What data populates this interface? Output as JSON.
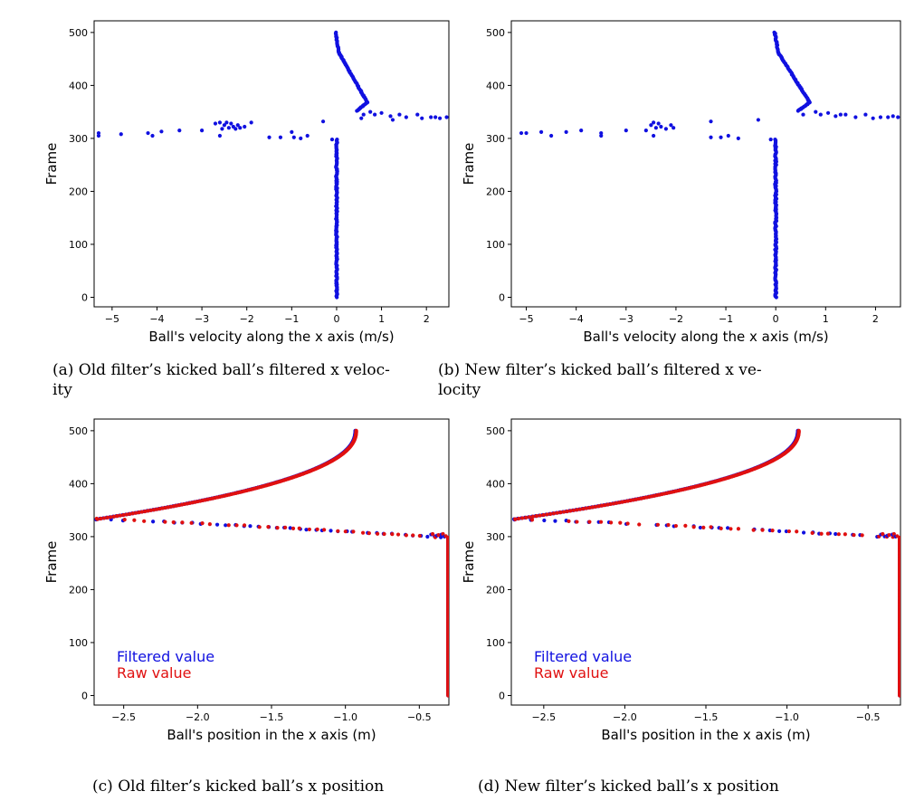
{
  "captions": {
    "a_line1": "(a) Old filter’s kicked ball’s filtered x veloc-",
    "a_line2": "ity",
    "b_line1": "(b) New filter’s kicked ball’s filtered x ve-",
    "b_line2": "locity",
    "c": "(c) Old filter’s kicked ball’s x position",
    "d": "(d) New filter’s kicked ball’s x position"
  },
  "colors": {
    "filtered": "#1010e0",
    "raw": "#e01010"
  },
  "chart_data": [
    {
      "id": "a",
      "type": "scatter",
      "xlabel": "Ball's velocity along the x axis (m/s)",
      "ylabel": "Frame",
      "xlim": [
        -5.4,
        2.5
      ],
      "ylim": [
        -18,
        522
      ],
      "xticks": [
        -5,
        -4,
        -3,
        -2,
        -1,
        0,
        1,
        2
      ],
      "xtick_labels": [
        "−5",
        "−4",
        "−3",
        "−2",
        "−1",
        "0",
        "1",
        "2"
      ],
      "yticks": [
        0,
        100,
        200,
        300,
        400,
        500
      ],
      "ytick_labels": [
        "0",
        "100",
        "200",
        "300",
        "400",
        "500"
      ],
      "grid": false,
      "legend": null,
      "series": [
        {
          "color": "#1010e0",
          "segments": [
            {
              "x0": 0.0,
              "y0": 0,
              "x1": 0.0,
              "y1": 298,
              "n": 150,
              "jitter": 0.015
            },
            {
              "x0": -0.02,
              "y0": 500,
              "x1": 0.05,
              "y1": 462,
              "n": 20,
              "jitter": 0.01
            },
            {
              "x0": 0.05,
              "y0": 462,
              "x1": 0.68,
              "y1": 368,
              "n": 60,
              "jitter": 0.01
            },
            {
              "x0": 0.68,
              "y0": 368,
              "x1": 0.45,
              "y1": 352,
              "n": 15,
              "jitter": 0.01
            }
          ],
          "points": [
            [
              -5.3,
              305
            ],
            [
              -5.3,
              310
            ],
            [
              -4.8,
              308
            ],
            [
              -4.2,
              310
            ],
            [
              -4.1,
              305
            ],
            [
              -3.9,
              313
            ],
            [
              -3.5,
              315
            ],
            [
              -3.0,
              315
            ],
            [
              -2.7,
              328
            ],
            [
              -2.6,
              330
            ],
            [
              -2.55,
              318
            ],
            [
              -2.5,
              325
            ],
            [
              -2.45,
              330
            ],
            [
              -2.4,
              320
            ],
            [
              -2.35,
              328
            ],
            [
              -2.3,
              322
            ],
            [
              -2.25,
              318
            ],
            [
              -2.2,
              325
            ],
            [
              -2.15,
              320
            ],
            [
              -2.05,
              322
            ],
            [
              -1.9,
              330
            ],
            [
              -1.5,
              302
            ],
            [
              -1.25,
              302
            ],
            [
              -1.0,
              312
            ],
            [
              -0.95,
              302
            ],
            [
              -0.8,
              300
            ],
            [
              -0.65,
              305
            ],
            [
              -0.3,
              332
            ],
            [
              -0.1,
              298
            ],
            [
              -2.6,
              305
            ],
            [
              0.6,
              345
            ],
            [
              0.55,
              338
            ],
            [
              0.75,
              350
            ],
            [
              0.85,
              345
            ],
            [
              1.0,
              348
            ],
            [
              1.2,
              342
            ],
            [
              1.25,
              335
            ],
            [
              1.4,
              345
            ],
            [
              1.55,
              340
            ],
            [
              1.8,
              345
            ],
            [
              1.9,
              338
            ],
            [
              2.1,
              340
            ],
            [
              2.2,
              340
            ],
            [
              2.3,
              338
            ],
            [
              2.45,
              340
            ]
          ]
        }
      ]
    },
    {
      "id": "b",
      "type": "scatter",
      "xlabel": "Ball's velocity along the x axis (m/s)",
      "ylabel": "Frame",
      "xlim": [
        -5.3,
        2.5
      ],
      "ylim": [
        -18,
        522
      ],
      "xticks": [
        -5,
        -4,
        -3,
        -2,
        -1,
        0,
        1,
        2
      ],
      "xtick_labels": [
        "−5",
        "−4",
        "−3",
        "−2",
        "−1",
        "0",
        "1",
        "2"
      ],
      "yticks": [
        0,
        100,
        200,
        300,
        400,
        500
      ],
      "ytick_labels": [
        "0",
        "100",
        "200",
        "300",
        "400",
        "500"
      ],
      "grid": false,
      "legend": null,
      "series": [
        {
          "color": "#1010e0",
          "segments": [
            {
              "x0": 0.0,
              "y0": 0,
              "x1": 0.0,
              "y1": 298,
              "n": 150,
              "jitter": 0.015
            },
            {
              "x0": -0.02,
              "y0": 500,
              "x1": 0.05,
              "y1": 462,
              "n": 20,
              "jitter": 0.01
            },
            {
              "x0": 0.05,
              "y0": 462,
              "x1": 0.68,
              "y1": 368,
              "n": 60,
              "jitter": 0.01
            },
            {
              "x0": 0.68,
              "y0": 368,
              "x1": 0.45,
              "y1": 352,
              "n": 15,
              "jitter": 0.01
            }
          ],
          "points": [
            [
              -5.1,
              310
            ],
            [
              -5.0,
              310
            ],
            [
              -4.7,
              312
            ],
            [
              -4.5,
              305
            ],
            [
              -4.2,
              312
            ],
            [
              -3.9,
              315
            ],
            [
              -3.5,
              310
            ],
            [
              -3.5,
              305
            ],
            [
              -3.0,
              315
            ],
            [
              -2.6,
              315
            ],
            [
              -2.5,
              325
            ],
            [
              -2.45,
              330
            ],
            [
              -2.4,
              320
            ],
            [
              -2.35,
              328
            ],
            [
              -2.3,
              322
            ],
            [
              -2.2,
              318
            ],
            [
              -2.1,
              325
            ],
            [
              -2.05,
              320
            ],
            [
              -1.3,
              332
            ],
            [
              -1.3,
              302
            ],
            [
              -1.1,
              302
            ],
            [
              -0.95,
              305
            ],
            [
              -0.75,
              300
            ],
            [
              -0.35,
              335
            ],
            [
              -0.1,
              298
            ],
            [
              -2.45,
              305
            ],
            [
              0.55,
              345
            ],
            [
              0.8,
              350
            ],
            [
              0.9,
              345
            ],
            [
              1.05,
              348
            ],
            [
              1.2,
              342
            ],
            [
              1.3,
              345
            ],
            [
              1.4,
              345
            ],
            [
              1.6,
              340
            ],
            [
              1.8,
              345
            ],
            [
              1.95,
              338
            ],
            [
              2.1,
              340
            ],
            [
              2.25,
              340
            ],
            [
              2.35,
              342
            ],
            [
              2.45,
              340
            ]
          ]
        }
      ]
    },
    {
      "id": "c",
      "type": "scatter",
      "xlabel": "Ball's position in the x axis (m)",
      "ylabel": "Frame",
      "xlim": [
        -2.7,
        -0.3
      ],
      "ylim": [
        -18,
        522
      ],
      "xticks": [
        -2.5,
        -2.0,
        -1.5,
        -1.0,
        -0.5
      ],
      "xtick_labels": [
        "−2.5",
        "−2.0",
        "−1.5",
        "−1.0",
        "−0.5"
      ],
      "yticks": [
        0,
        100,
        200,
        300,
        400,
        500
      ],
      "ytick_labels": [
        "0",
        "100",
        "200",
        "300",
        "400",
        "500"
      ],
      "grid": false,
      "legend": {
        "position": "lower-left",
        "entries": [
          "Filtered value",
          "Raw value"
        ]
      },
      "series": [
        {
          "name": "Filtered value",
          "color": "#1010e0",
          "curve_upper": true,
          "curve_lower": true,
          "vertical": true
        },
        {
          "name": "Raw value",
          "color": "#e01010",
          "curve_upper": true,
          "curve_lower": true,
          "vertical": true
        }
      ]
    },
    {
      "id": "d",
      "type": "scatter",
      "xlabel": "Ball's position in the x axis (m)",
      "ylabel": "Frame",
      "xlim": [
        -2.7,
        -0.3
      ],
      "ylim": [
        -18,
        522
      ],
      "xticks": [
        -2.5,
        -2.0,
        -1.5,
        -1.0,
        -0.5
      ],
      "xtick_labels": [
        "−2.5",
        "−2.0",
        "−1.5",
        "−1.0",
        "−0.5"
      ],
      "yticks": [
        0,
        100,
        200,
        300,
        400,
        500
      ],
      "ytick_labels": [
        "0",
        "100",
        "200",
        "300",
        "400",
        "500"
      ],
      "grid": false,
      "legend": {
        "position": "lower-left",
        "entries": [
          "Filtered value",
          "Raw value"
        ]
      },
      "series": [
        {
          "name": "Filtered value",
          "color": "#1010e0",
          "curve_upper": true,
          "curve_lower": true,
          "vertical": true
        },
        {
          "name": "Raw value",
          "color": "#e01010",
          "curve_upper": true,
          "curve_lower": true,
          "vertical": true
        }
      ]
    }
  ]
}
